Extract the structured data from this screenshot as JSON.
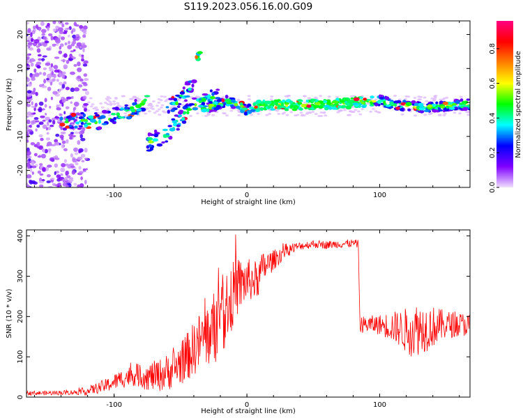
{
  "figure": {
    "title": "S119.2023.056.16.00.G09"
  },
  "chart_data": [
    {
      "type": "heatmap",
      "xlabel": "Height of straight line (km)",
      "ylabel": "Frequency (Hz)",
      "xlim": [
        -166,
        168
      ],
      "ylim": [
        -25,
        24
      ],
      "xticks": [
        -100,
        0,
        100
      ],
      "xtick_labels": [
        "-100",
        "0",
        "100"
      ],
      "yticks": [
        -20,
        -10,
        0,
        10,
        20
      ],
      "ytick_labels": [
        "-20",
        "-10",
        "0",
        "10",
        "20"
      ],
      "colorbar": {
        "label": "Normalized spectral amplitude",
        "range": [
          0,
          0.96
        ],
        "ticks": [
          0.0,
          0.2,
          0.4,
          0.6,
          0.8
        ],
        "tick_labels": [
          "0.0",
          "0.2",
          "0.4",
          "0.6",
          "0.8"
        ],
        "colormap": [
          "#f0e0ff",
          "#8000ff",
          "#0000ff",
          "#00ffff",
          "#00ff00",
          "#ffff00",
          "#ff8000",
          "#ff0000",
          "#ff0080"
        ]
      },
      "ridges": [
        {
          "x": [
            -140,
            -110,
            -100,
            -90,
            -80,
            -75
          ],
          "y": [
            -5.5,
            -5.5,
            -4,
            -3,
            -1,
            2
          ]
        },
        {
          "x": [
            -75,
            -60,
            -50,
            -40,
            -30,
            -20
          ],
          "y": [
            -12,
            -9,
            -5,
            -1,
            1,
            2
          ]
        },
        {
          "x": [
            -60,
            -50,
            -45,
            -40,
            -35
          ],
          "y": [
            -2,
            1,
            3,
            8,
            16
          ]
        },
        {
          "x": [
            -35,
            -25,
            -15,
            -5,
            0,
            5,
            10
          ],
          "y": [
            -2,
            -1,
            0.5,
            -1,
            -2.5,
            -1.5,
            -0.8
          ]
        },
        {
          "x": [
            10,
            40,
            70,
            90,
            100,
            110
          ],
          "y": [
            -0.8,
            -0.8,
            -0.3,
            0.2,
            0.6,
            -0.5
          ]
        },
        {
          "x": [
            110,
            130,
            150,
            168
          ],
          "y": [
            -0.5,
            -1.5,
            -1,
            -0.5
          ]
        }
      ],
      "noise_region": {
        "x": [
          -166,
          -120
        ],
        "y": [
          -25,
          24
        ]
      }
    },
    {
      "type": "line",
      "xlabel": "Height of straight line (km)",
      "ylabel": "SNR (10 * v/v)",
      "xlim": [
        -166,
        168
      ],
      "ylim": [
        0,
        415
      ],
      "xticks": [
        -100,
        0,
        100
      ],
      "xtick_labels": [
        "-100",
        "0",
        "100"
      ],
      "yticks": [
        0,
        100,
        200,
        300,
        400
      ],
      "ytick_labels": [
        "0",
        "100",
        "200",
        "300",
        "400"
      ],
      "line_color": "#ff0000",
      "series": [
        {
          "x": [
            -166,
            -150,
            -130,
            -120,
            -105,
            -95,
            -85,
            -75,
            -65,
            -55,
            -45,
            -35,
            -28,
            -22,
            -15,
            -8,
            0,
            8,
            12,
            20,
            30,
            40,
            50,
            60,
            70,
            80,
            84,
            85,
            90,
            100,
            110,
            120,
            130,
            140,
            150,
            160,
            168
          ],
          "y": [
            10,
            10,
            12,
            15,
            30,
            45,
            55,
            50,
            55,
            70,
            100,
            140,
            160,
            185,
            230,
            270,
            290,
            290,
            320,
            340,
            365,
            375,
            380,
            378,
            380,
            382,
            380,
            180,
            180,
            180,
            175,
            165,
            170,
            175,
            180,
            180,
            180
          ]
        }
      ],
      "noise_envelope": {
        "x": [
          -166,
          -130,
          -110,
          -80,
          -60,
          -45,
          -35,
          -25,
          -20,
          -10,
          0,
          10,
          20,
          40,
          84,
          85,
          100,
          115,
          125,
          135,
          150,
          168
        ],
        "amplitude": [
          5,
          6,
          15,
          30,
          45,
          60,
          75,
          90,
          110,
          80,
          55,
          45,
          25,
          10,
          10,
          20,
          25,
          45,
          70,
          60,
          35,
          28
        ]
      }
    }
  ]
}
